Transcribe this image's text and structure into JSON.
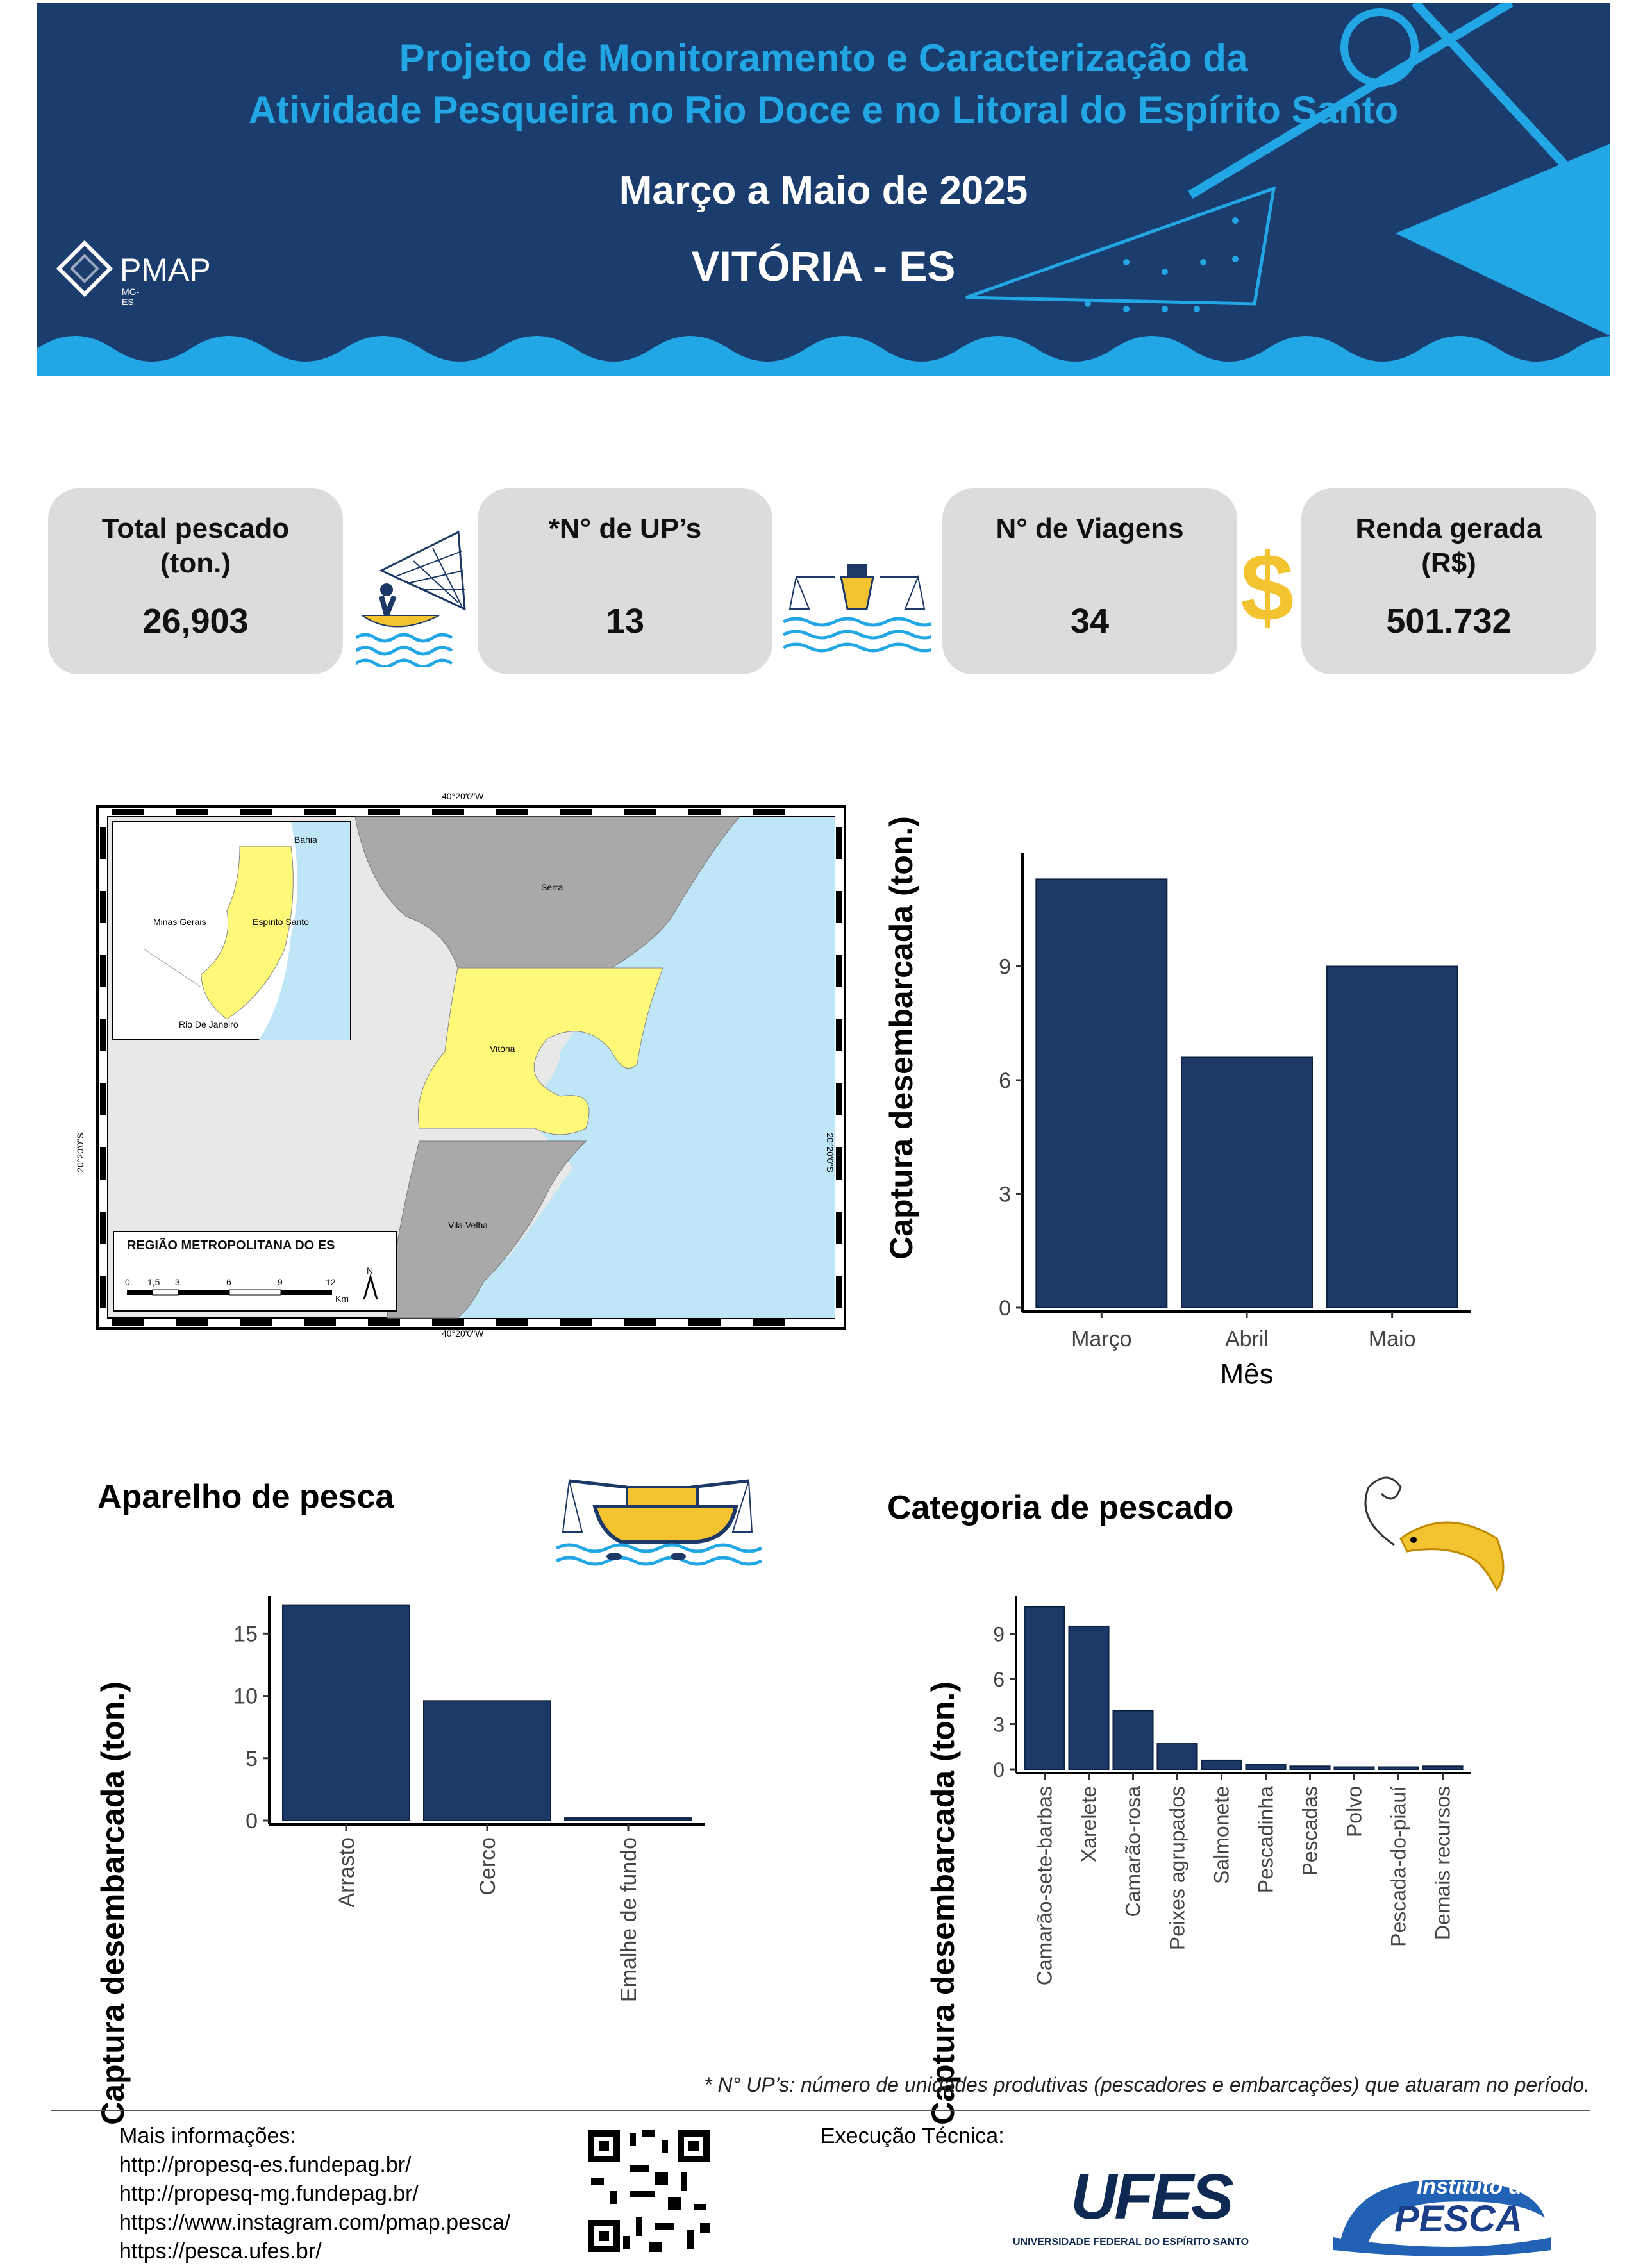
{
  "header": {
    "title_line1": "Projeto de Monitoramento e Caracterização da",
    "title_line2": "Atividade Pesqueira no Rio Doce e no Litoral do Espírito Santo",
    "period": "Março a Maio de 2025",
    "location": "VITÓRIA - ES",
    "logo_text": "PMAP",
    "logo_small": "MG-ES"
  },
  "stats": [
    {
      "label": "Total pescado (ton.)",
      "value": "26,903"
    },
    {
      "label": "*N° de UP’s",
      "value": "13"
    },
    {
      "label": "N°  de Viagens",
      "value": "34"
    },
    {
      "label": "Renda gerada (R$)",
      "value": "501.732"
    }
  ],
  "dollar_symbol": "$",
  "map": {
    "coord_top": "40°20'0\"W",
    "coord_bottom": "40°20'0\"W",
    "coord_left": "20°20'0\"S",
    "coord_right": "20°20'0\"S",
    "places": {
      "bahia": "Bahia",
      "minas": "Minas Gerais",
      "es": "Espírito Santo",
      "rj": "Rio De Janeiro",
      "serra": "Serra",
      "vitoria": "Vitória",
      "vila_velha": "Vila Velha"
    },
    "legend_title": "REGIÃO METROPOLITANA DO ES",
    "scale_labels": [
      "0",
      "1,5",
      "3",
      "6",
      "9",
      "12"
    ],
    "scale_unit": "Km",
    "north": "N"
  },
  "chart_data": [
    {
      "type": "bar",
      "title": "",
      "categories": [
        "Março",
        "Abril",
        "Maio"
      ],
      "values": [
        11.3,
        6.6,
        9.0
      ],
      "xlabel": "Mês",
      "ylabel": "Captura desembarcada (ton.)",
      "yticks": [
        0,
        3,
        6,
        9
      ],
      "ylim": [
        0,
        12
      ]
    },
    {
      "type": "bar",
      "title": "Aparelho de pesca",
      "categories": [
        "Arrasto",
        "Cerco",
        "Emalhe de fundo"
      ],
      "values": [
        17.3,
        9.6,
        0.2
      ],
      "xlabel": "",
      "ylabel": "Captura desembarcada (ton.)",
      "yticks": [
        0,
        5,
        10,
        15
      ],
      "ylim": [
        0,
        18
      ]
    },
    {
      "type": "bar",
      "title": "Categoria de pescado",
      "categories": [
        "Camarão-sete-barbas",
        "Xarelete",
        "Camarão-rosa",
        "Peixes agrupados",
        "Salmonete",
        "Pescadinha",
        "Pescadas",
        "Polvo",
        "Pescada-do-piauí",
        "Demais recursos"
      ],
      "values": [
        10.8,
        9.5,
        3.9,
        1.7,
        0.6,
        0.3,
        0.2,
        0.15,
        0.15,
        0.2
      ],
      "xlabel": "",
      "ylabel": "Captura desembarcada (ton.)",
      "yticks": [
        0,
        3,
        6,
        9
      ],
      "ylim": [
        0,
        11.5
      ]
    }
  ],
  "footnote": "* N° UP’s: número de unidades produtivas (pescadores e embarcações) que atuaram no período.",
  "footer": {
    "info_title": "Mais informações:",
    "links": [
      "http://propesq-es.fundepag.br/",
      "http://propesq-mg.fundepag.br/",
      "https://www.instagram.com/pmap.pesca/",
      "https://pesca.ufes.br/"
    ],
    "execucao": "Execução Técnica:",
    "ufes_logo": "UFES",
    "ufes_name": "UNIVERSIDADE FEDERAL DO ESPÍRITO SANTO",
    "ip_line1": "Instituto de",
    "ip_line2": "PESCA"
  },
  "colors": {
    "bar": "#1b3866",
    "header": "#1b3d6e",
    "accent": "#22a7e6",
    "gold": "#f4c430"
  }
}
